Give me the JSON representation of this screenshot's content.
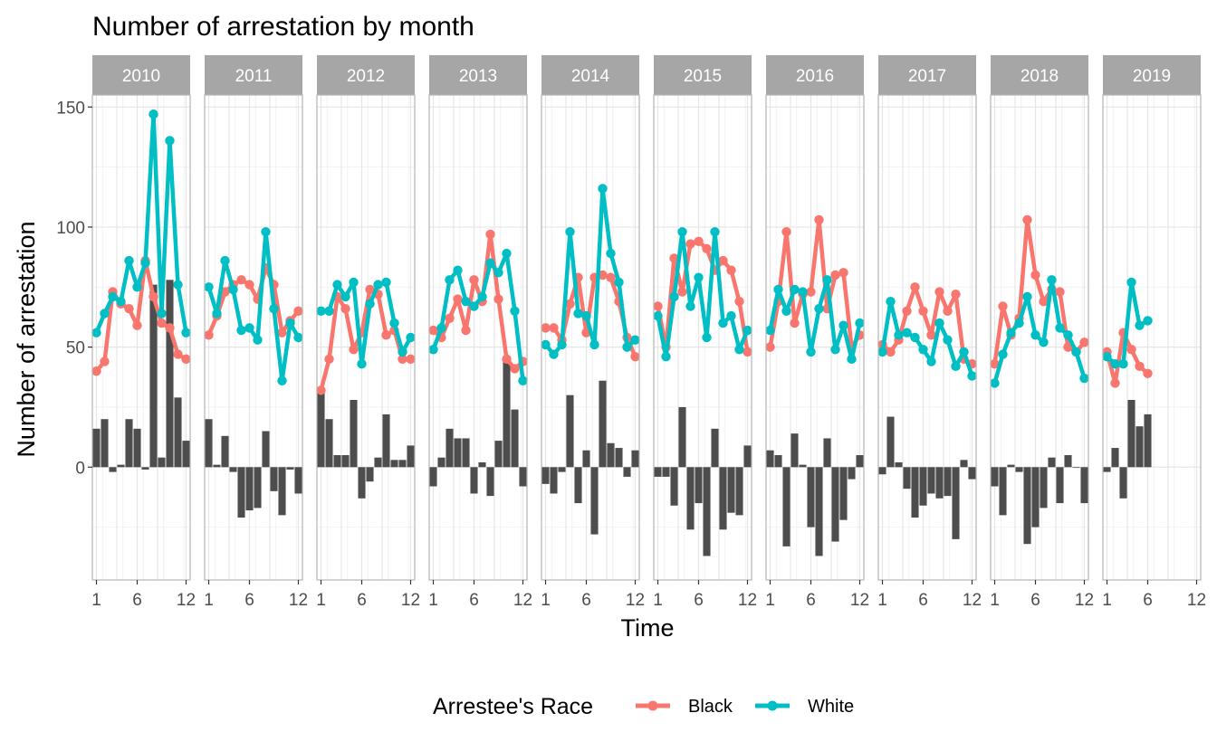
{
  "chart_data": {
    "type": "line",
    "title": "Number of arrestation by month",
    "xlabel": "Time",
    "ylabel": "Number of arrestation",
    "x_ticks": [
      1,
      6,
      12
    ],
    "xlim": [
      0.5,
      12.5
    ],
    "y_ticks": [
      0,
      50,
      100,
      150
    ],
    "ylim": [
      -47,
      155
    ],
    "grid": true,
    "legend": {
      "title": "Arrestee's Race",
      "position": "bottom",
      "entries": [
        "Black",
        "White"
      ]
    },
    "colors": {
      "Black": "#F8766D",
      "White": "#00BFC4",
      "bars": "#4D4D4D",
      "strip": "#A6A6A6"
    },
    "bars_meaning": "difference White minus Black (vertical bars)",
    "panels": [
      {
        "year": "2010",
        "black": [
          40,
          44,
          73,
          68,
          66,
          59,
          86,
          71,
          60,
          58,
          47,
          45
        ],
        "white": [
          56,
          64,
          71,
          69,
          86,
          75,
          85,
          147,
          64,
          136,
          76,
          56
        ]
      },
      {
        "year": "2011",
        "black": [
          55,
          63,
          73,
          76,
          78,
          76,
          70,
          83,
          76,
          56,
          61,
          65
        ],
        "white": [
          75,
          64,
          86,
          74,
          57,
          58,
          53,
          98,
          66,
          36,
          60,
          54
        ]
      },
      {
        "year": "2012",
        "black": [
          32,
          45,
          71,
          66,
          49,
          56,
          74,
          72,
          55,
          57,
          45,
          45
        ],
        "white": [
          65,
          65,
          76,
          71,
          77,
          43,
          68,
          76,
          77,
          60,
          48,
          54
        ]
      },
      {
        "year": "2013",
        "black": [
          57,
          54,
          62,
          70,
          57,
          78,
          69,
          97,
          70,
          45,
          41,
          44
        ],
        "white": [
          49,
          58,
          78,
          82,
          69,
          67,
          71,
          85,
          81,
          89,
          65,
          36
        ]
      },
      {
        "year": "2014",
        "black": [
          58,
          58,
          53,
          68,
          79,
          56,
          79,
          80,
          79,
          69,
          54,
          46
        ],
        "white": [
          51,
          47,
          51,
          98,
          64,
          63,
          51,
          116,
          89,
          77,
          50,
          53
        ]
      },
      {
        "year": "2015",
        "black": [
          67,
          50,
          87,
          73,
          93,
          94,
          91,
          82,
          86,
          82,
          69,
          48
        ],
        "white": [
          63,
          46,
          71,
          98,
          67,
          79,
          54,
          98,
          60,
          63,
          49,
          57
        ]
      },
      {
        "year": "2016",
        "black": [
          50,
          69,
          98,
          60,
          72,
          73,
          103,
          66,
          80,
          81,
          50,
          55
        ],
        "white": [
          57,
          74,
          65,
          74,
          73,
          48,
          66,
          78,
          49,
          59,
          45,
          60
        ]
      },
      {
        "year": "2017",
        "black": [
          51,
          48,
          53,
          65,
          75,
          65,
          55,
          73,
          65,
          72,
          45,
          43
        ],
        "white": [
          48,
          69,
          55,
          56,
          54,
          49,
          44,
          60,
          53,
          42,
          48,
          38
        ]
      },
      {
        "year": "2018",
        "black": [
          43,
          67,
          55,
          62,
          103,
          80,
          69,
          74,
          73,
          50,
          48,
          52
        ],
        "white": [
          35,
          47,
          56,
          60,
          71,
          55,
          52,
          78,
          58,
          55,
          48,
          37
        ]
      },
      {
        "year": "2019",
        "black": [
          48,
          35,
          56,
          49,
          42,
          39
        ],
        "white": [
          46,
          43,
          43,
          77,
          59,
          61
        ]
      }
    ]
  }
}
